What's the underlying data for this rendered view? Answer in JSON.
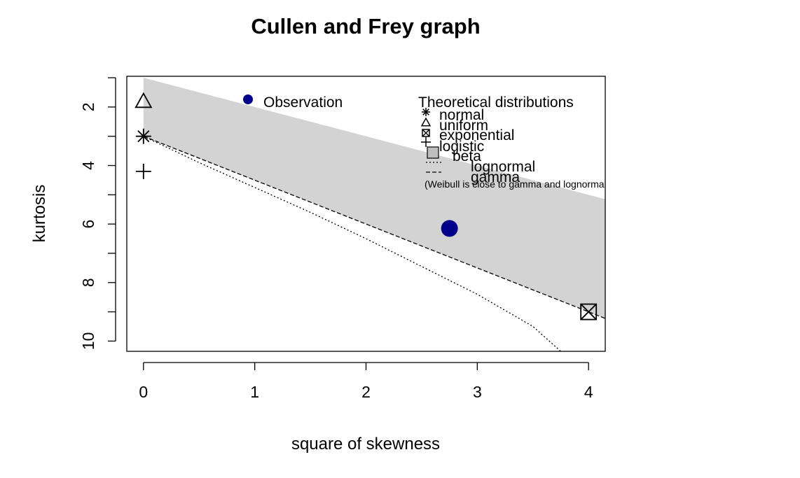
{
  "chart_data": {
    "type": "scatter",
    "title": "Cullen and Frey graph",
    "xlabel": "square of skewness",
    "ylabel": "kurtosis",
    "xlim": [
      -0.15,
      4.15
    ],
    "ylim": [
      10.35,
      0.95
    ],
    "y_reversed": true,
    "x_ticks": [
      0,
      1,
      2,
      3,
      4
    ],
    "y_ticks": [
      2,
      4,
      6,
      8,
      10
    ],
    "observation": {
      "x": 2.75,
      "y": 6.15,
      "color": "#00008b"
    },
    "theoretical_points": [
      {
        "name": "normal",
        "x": 0,
        "y": 3,
        "symbol": "asterisk"
      },
      {
        "name": "uniform",
        "x": 0,
        "y": 1.8,
        "symbol": "triangle"
      },
      {
        "name": "exponential",
        "x": 4,
        "y": 9,
        "symbol": "crossed-square"
      },
      {
        "name": "logistic",
        "x": 0,
        "y": 4.2,
        "symbol": "plus"
      }
    ],
    "beta_region": {
      "color": "#d3d3d3",
      "upper": [
        [
          0,
          1
        ],
        [
          4.15,
          5.15
        ]
      ],
      "lower": [
        [
          0,
          3
        ],
        [
          4.15,
          9.225
        ]
      ]
    },
    "lognormal_line": [
      [
        0,
        3
      ],
      [
        0.5,
        3.9
      ],
      [
        1,
        4.75
      ],
      [
        1.5,
        5.6
      ],
      [
        2,
        6.5
      ],
      [
        2.5,
        7.45
      ],
      [
        3,
        8.4
      ],
      [
        3.5,
        9.5
      ],
      [
        3.75,
        10.35
      ]
    ],
    "gamma_line": [
      [
        0,
        3
      ],
      [
        4.15,
        9.225
      ]
    ],
    "legend_observation": {
      "label": "Observation"
    },
    "legend_theoretical": {
      "title": "Theoretical distributions",
      "entries": [
        {
          "label": "normal",
          "symbol": "asterisk"
        },
        {
          "label": "uniform",
          "symbol": "triangle"
        },
        {
          "label": "exponential",
          "symbol": "crossed-square"
        },
        {
          "label": "logistic",
          "symbol": "plus"
        },
        {
          "label": "beta",
          "symbol": "grey-square"
        },
        {
          "label": "lognormal",
          "symbol": "dotted-line"
        },
        {
          "label": "gamma",
          "symbol": "dashed-line"
        }
      ],
      "note": "(Weibull is close to gamma and lognormal)"
    }
  }
}
